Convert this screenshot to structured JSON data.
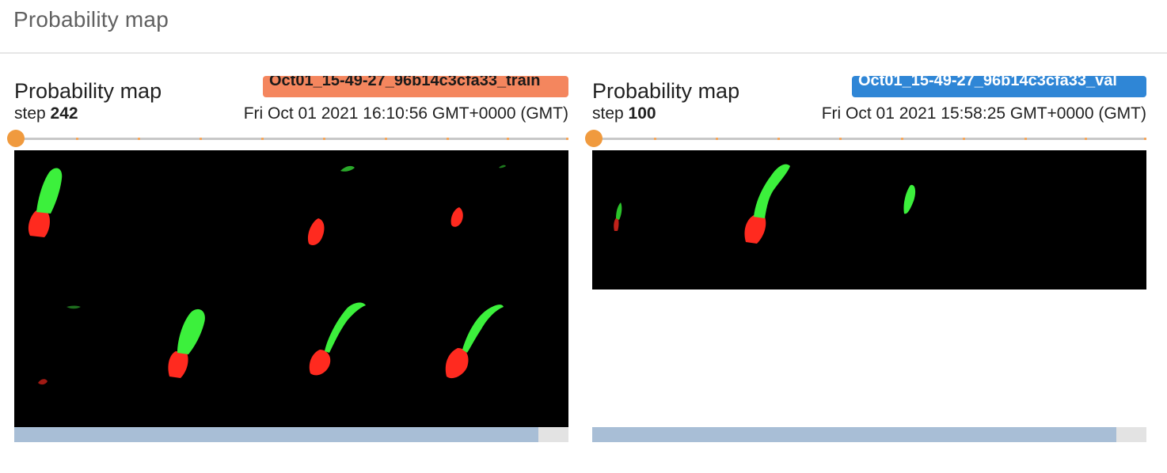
{
  "section": {
    "title": "Probability map"
  },
  "cards": [
    {
      "title": "Probability map",
      "run": "Oct01_15-49-27_96b14c3cfa33_train",
      "run_color": "#f4865e",
      "run_text_color": "#1a1a1a",
      "step_label": "step",
      "step_value": "242",
      "timestamp": "Fri Oct 01 2021 16:10:56 GMT+0000 (GMT)",
      "slider_value": 0,
      "scroll_fraction": 0.945
    },
    {
      "title": "Probability map",
      "run": "Oct01_15-49-27_96b14c3cfa33_val",
      "run_color": "#2f86d6",
      "run_text_color": "#ffffff",
      "step_label": "step",
      "step_value": "100",
      "timestamp": "Fri Oct 01 2021 15:58:25 GMT+0000 (GMT)",
      "slider_value": 0,
      "scroll_fraction": 0.945
    }
  ],
  "colors": {
    "slider_accent": "#f09a3e",
    "scrollbar_thumb": "#a8bed6",
    "image_background": "#000000",
    "mask_red": "#ff2a1f",
    "mask_green": "#3cf03c"
  }
}
